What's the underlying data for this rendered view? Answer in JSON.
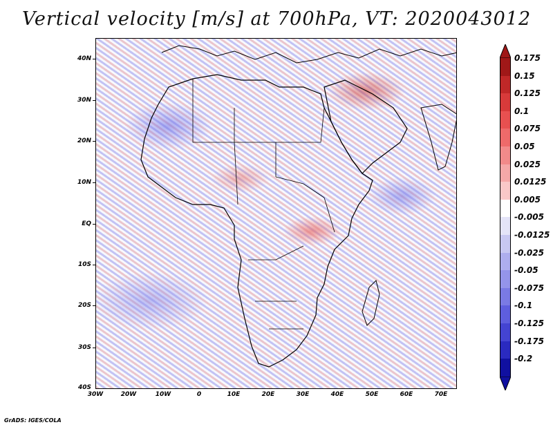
{
  "title": "Vertical velocity [m/s] at 700hPa, VT: 2020043012",
  "map": {
    "region": "Africa",
    "variable": "Vertical velocity",
    "units": "m/s",
    "level": "700hPa",
    "valid_time": "2020043012"
  },
  "axes": {
    "latitude_labels": [
      "40N",
      "30N",
      "20N",
      "10N",
      "EQ",
      "10S",
      "20S",
      "30S",
      "40S"
    ],
    "longitude_labels": [
      "30W",
      "20W",
      "10W",
      "0",
      "10E",
      "20E",
      "30E",
      "40E",
      "50E",
      "60E",
      "70E"
    ]
  },
  "colorbar": {
    "labels": [
      "0.175",
      "0.15",
      "0.125",
      "0.1",
      "0.075",
      "0.05",
      "0.025",
      "0.0125",
      "0.005",
      "-0.005",
      "-0.0125",
      "-0.025",
      "-0.05",
      "-0.075",
      "-0.1",
      "-0.125",
      "-0.175",
      "-0.2"
    ],
    "colors": [
      "#a01818",
      "#c02828",
      "#d83a3a",
      "#e85050",
      "#ee6a6a",
      "#f28a8a",
      "#f5a8a8",
      "#f9c8c8",
      "#ffffff",
      "#e4e4f8",
      "#c8c8f2",
      "#aeaeee",
      "#9494ea",
      "#7a7ae4",
      "#5e5ede",
      "#4444d2",
      "#2a2ac0",
      "#1010a0"
    ],
    "top_arrow_color": "#a01818",
    "bottom_arrow_color": "#1010a0"
  },
  "footer": "GrADS: IGES/COLA"
}
